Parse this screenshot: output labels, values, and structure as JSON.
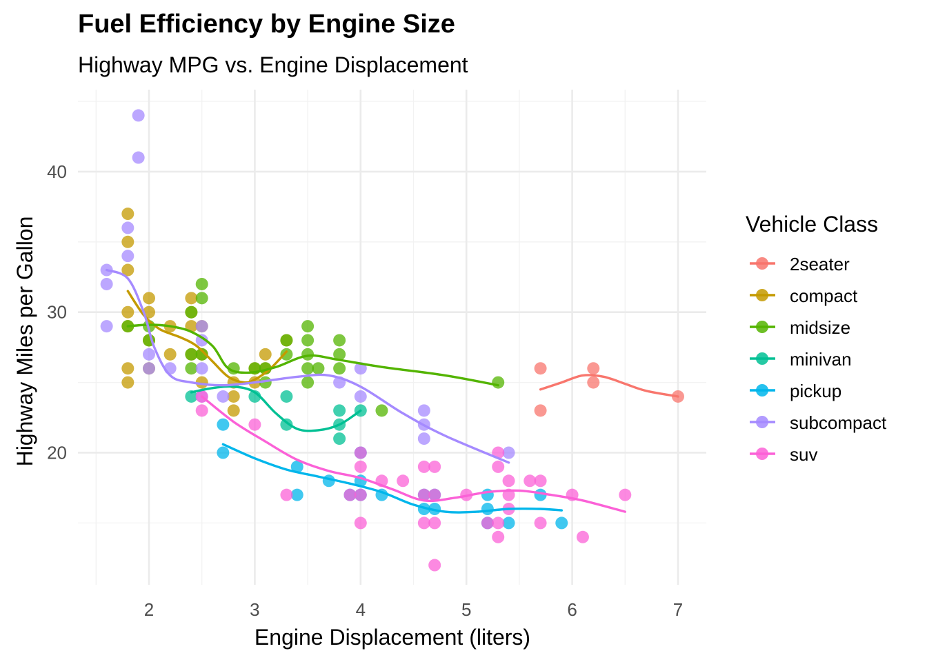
{
  "chart_data": {
    "type": "scatter",
    "title": "Fuel Efficiency by Engine Size",
    "subtitle": "Highway MPG vs. Engine Displacement",
    "xlabel": "Engine Displacement (liters)",
    "ylabel": "Highway Miles per Gallon",
    "xlim": [
      1.4,
      7.2
    ],
    "ylim": [
      11,
      45
    ],
    "x_ticks": [
      2,
      3,
      4,
      5,
      6,
      7
    ],
    "y_ticks": [
      20,
      30,
      40
    ],
    "grid": true,
    "legend": {
      "title": "Vehicle Class",
      "placement": "right",
      "entries": [
        "2seater",
        "compact",
        "midsize",
        "minivan",
        "pickup",
        "subcompact",
        "suv"
      ]
    },
    "series": [
      {
        "name": "2seater",
        "color": "#F8766D",
        "points": [
          [
            5.7,
            26
          ],
          [
            5.7,
            23
          ],
          [
            6.2,
            26
          ],
          [
            6.2,
            25
          ],
          [
            7.0,
            24
          ]
        ],
        "trend": [
          [
            5.7,
            24.5
          ],
          [
            5.9,
            25.0
          ],
          [
            6.1,
            25.5
          ],
          [
            6.3,
            25.4
          ],
          [
            6.5,
            24.9
          ],
          [
            6.7,
            24.4
          ],
          [
            7.0,
            24.0
          ]
        ]
      },
      {
        "name": "compact",
        "color": "#C49A00",
        "points": [
          [
            1.8,
            37
          ],
          [
            1.8,
            35
          ],
          [
            1.8,
            33
          ],
          [
            1.8,
            30
          ],
          [
            1.8,
            29
          ],
          [
            1.8,
            26
          ],
          [
            1.8,
            25
          ],
          [
            2.0,
            31
          ],
          [
            2.0,
            30
          ],
          [
            2.0,
            28
          ],
          [
            2.0,
            26
          ],
          [
            2.2,
            29
          ],
          [
            2.2,
            27
          ],
          [
            2.4,
            31
          ],
          [
            2.4,
            30
          ],
          [
            2.4,
            29
          ],
          [
            2.4,
            27
          ],
          [
            2.5,
            29
          ],
          [
            2.5,
            27
          ],
          [
            2.5,
            25
          ],
          [
            2.8,
            25
          ],
          [
            2.8,
            24
          ],
          [
            2.8,
            23
          ],
          [
            3.0,
            26
          ],
          [
            3.0,
            25
          ],
          [
            3.1,
            27
          ],
          [
            3.1,
            26
          ],
          [
            3.3,
            28
          ]
        ],
        "trend": [
          [
            1.8,
            31.5
          ],
          [
            1.95,
            29.8
          ],
          [
            2.1,
            28.8
          ],
          [
            2.3,
            28.2
          ],
          [
            2.45,
            27.6
          ],
          [
            2.6,
            26.5
          ],
          [
            2.75,
            25.4
          ],
          [
            2.9,
            25.0
          ],
          [
            3.0,
            25.2
          ],
          [
            3.15,
            26.0
          ],
          [
            3.3,
            27.2
          ]
        ]
      },
      {
        "name": "midsize",
        "color": "#53B400",
        "points": [
          [
            1.8,
            29
          ],
          [
            2.0,
            29
          ],
          [
            2.0,
            28
          ],
          [
            2.4,
            30
          ],
          [
            2.4,
            27
          ],
          [
            2.4,
            26
          ],
          [
            2.5,
            32
          ],
          [
            2.5,
            31
          ],
          [
            2.5,
            27
          ],
          [
            2.8,
            26
          ],
          [
            3.0,
            26
          ],
          [
            3.1,
            26
          ],
          [
            3.1,
            25
          ],
          [
            3.3,
            28
          ],
          [
            3.3,
            27
          ],
          [
            3.5,
            29
          ],
          [
            3.5,
            28
          ],
          [
            3.5,
            27
          ],
          [
            3.5,
            26
          ],
          [
            3.5,
            25
          ],
          [
            3.6,
            26
          ],
          [
            3.8,
            28
          ],
          [
            3.8,
            27
          ],
          [
            3.8,
            26
          ],
          [
            4.2,
            23
          ],
          [
            5.3,
            25
          ]
        ],
        "trend": [
          [
            1.8,
            29.0
          ],
          [
            2.0,
            29.1
          ],
          [
            2.2,
            29.0
          ],
          [
            2.4,
            28.6
          ],
          [
            2.6,
            27.6
          ],
          [
            2.75,
            26.0
          ],
          [
            2.95,
            25.7
          ],
          [
            3.2,
            26.1
          ],
          [
            3.5,
            26.9
          ],
          [
            3.8,
            26.6
          ],
          [
            4.2,
            26.1
          ],
          [
            4.8,
            25.5
          ],
          [
            5.3,
            24.8
          ]
        ]
      },
      {
        "name": "minivan",
        "color": "#00C094",
        "points": [
          [
            2.4,
            24
          ],
          [
            3.0,
            24
          ],
          [
            3.3,
            24
          ],
          [
            3.3,
            22
          ],
          [
            3.8,
            23
          ],
          [
            3.8,
            22
          ],
          [
            3.8,
            21
          ],
          [
            4.0,
            23
          ]
        ],
        "trend": [
          [
            2.4,
            24.3
          ],
          [
            2.6,
            24.6
          ],
          [
            2.8,
            24.7
          ],
          [
            3.0,
            24.3
          ],
          [
            3.2,
            22.8
          ],
          [
            3.4,
            21.7
          ],
          [
            3.6,
            21.6
          ],
          [
            3.8,
            22.0
          ],
          [
            4.0,
            23.0
          ]
        ]
      },
      {
        "name": "pickup",
        "color": "#00B6EB",
        "points": [
          [
            2.7,
            22
          ],
          [
            2.7,
            20
          ],
          [
            3.4,
            19
          ],
          [
            3.4,
            17
          ],
          [
            3.7,
            18
          ],
          [
            3.9,
            17
          ],
          [
            4.0,
            20
          ],
          [
            4.0,
            18
          ],
          [
            4.0,
            17
          ],
          [
            4.2,
            17
          ],
          [
            4.6,
            17
          ],
          [
            4.6,
            16
          ],
          [
            4.7,
            17
          ],
          [
            4.7,
            16
          ],
          [
            5.2,
            17
          ],
          [
            5.2,
            16
          ],
          [
            5.2,
            15
          ],
          [
            5.4,
            15
          ],
          [
            5.7,
            17
          ],
          [
            5.9,
            15
          ]
        ],
        "trend": [
          [
            2.7,
            20.6
          ],
          [
            3.0,
            19.6
          ],
          [
            3.3,
            18.8
          ],
          [
            3.6,
            18.3
          ],
          [
            3.9,
            17.8
          ],
          [
            4.2,
            17.2
          ],
          [
            4.5,
            16.3
          ],
          [
            4.8,
            15.8
          ],
          [
            5.1,
            15.8
          ],
          [
            5.4,
            16.0
          ],
          [
            5.7,
            16.0
          ],
          [
            5.9,
            15.9
          ]
        ]
      },
      {
        "name": "subcompact",
        "color": "#A58AFF",
        "points": [
          [
            1.6,
            33
          ],
          [
            1.6,
            32
          ],
          [
            1.6,
            29
          ],
          [
            1.8,
            36
          ],
          [
            1.8,
            34
          ],
          [
            1.9,
            44
          ],
          [
            1.9,
            41
          ],
          [
            2.0,
            27
          ],
          [
            2.0,
            26
          ],
          [
            2.2,
            26
          ],
          [
            2.5,
            29
          ],
          [
            2.5,
            28
          ],
          [
            2.5,
            26
          ],
          [
            2.5,
            24
          ],
          [
            2.7,
            24
          ],
          [
            3.8,
            25
          ],
          [
            4.0,
            26
          ],
          [
            4.0,
            24
          ],
          [
            4.6,
            23
          ],
          [
            4.6,
            22
          ],
          [
            4.6,
            21
          ],
          [
            5.4,
            20
          ]
        ],
        "trend": [
          [
            1.6,
            33.0
          ],
          [
            1.8,
            32.4
          ],
          [
            1.95,
            30.0
          ],
          [
            2.05,
            27.5
          ],
          [
            2.2,
            25.5
          ],
          [
            2.4,
            25.0
          ],
          [
            2.7,
            24.8
          ],
          [
            3.0,
            25.0
          ],
          [
            3.4,
            25.4
          ],
          [
            3.7,
            25.5
          ],
          [
            4.0,
            24.7
          ],
          [
            4.4,
            22.8
          ],
          [
            4.8,
            21.2
          ],
          [
            5.4,
            19.3
          ]
        ]
      },
      {
        "name": "suv",
        "color": "#FB61D7",
        "points": [
          [
            2.5,
            24
          ],
          [
            2.5,
            23
          ],
          [
            3.0,
            22
          ],
          [
            3.3,
            17
          ],
          [
            3.9,
            17
          ],
          [
            4.0,
            20
          ],
          [
            4.0,
            19
          ],
          [
            4.0,
            17
          ],
          [
            4.0,
            15
          ],
          [
            4.2,
            18
          ],
          [
            4.4,
            18
          ],
          [
            4.6,
            19
          ],
          [
            4.6,
            17
          ],
          [
            4.6,
            15
          ],
          [
            4.7,
            19
          ],
          [
            4.7,
            17
          ],
          [
            4.7,
            15
          ],
          [
            4.7,
            12
          ],
          [
            5.0,
            17
          ],
          [
            5.2,
            15
          ],
          [
            5.3,
            20
          ],
          [
            5.3,
            19
          ],
          [
            5.3,
            15
          ],
          [
            5.3,
            14
          ],
          [
            5.4,
            18
          ],
          [
            5.4,
            17
          ],
          [
            5.4,
            16
          ],
          [
            5.6,
            18
          ],
          [
            5.7,
            18
          ],
          [
            5.7,
            15
          ],
          [
            6.0,
            17
          ],
          [
            6.1,
            14
          ],
          [
            6.5,
            17
          ]
        ],
        "trend": [
          [
            2.5,
            24.0
          ],
          [
            2.8,
            22.2
          ],
          [
            3.1,
            20.8
          ],
          [
            3.4,
            19.5
          ],
          [
            3.7,
            18.7
          ],
          [
            4.0,
            18.2
          ],
          [
            4.3,
            17.4
          ],
          [
            4.6,
            16.6
          ],
          [
            4.9,
            16.8
          ],
          [
            5.2,
            17.2
          ],
          [
            5.5,
            17.3
          ],
          [
            5.8,
            17.0
          ],
          [
            6.1,
            16.6
          ],
          [
            6.5,
            15.8
          ]
        ]
      }
    ]
  }
}
